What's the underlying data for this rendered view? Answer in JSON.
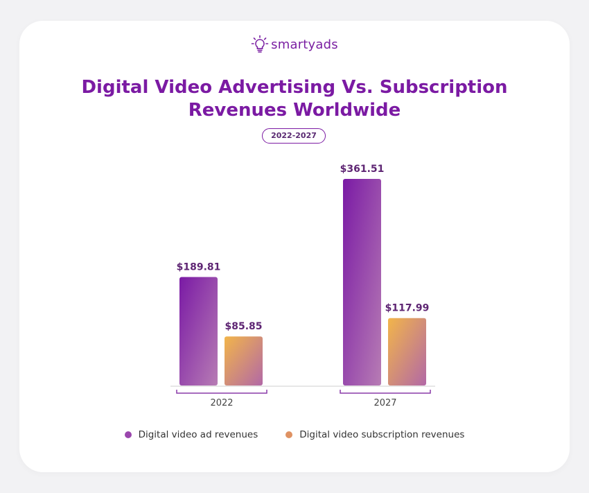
{
  "brand": {
    "name": "smartyads",
    "icon": "lightbulb-icon",
    "color": "#7a1fa2"
  },
  "title_line1": "Digital Video Advertising Vs. Subscription",
  "title_line2": "Revenues Worldwide",
  "period": "2022-2027",
  "chart_data": {
    "type": "bar",
    "title": "Digital Video Advertising Vs. Subscription Revenues Worldwide",
    "subtitle": "2022-2027",
    "categories": [
      "2022",
      "2027"
    ],
    "series": [
      {
        "name": "Digital video ad revenues",
        "values": [
          189.81,
          361.51
        ],
        "labels": [
          "$189.81",
          "$361.51"
        ],
        "gradient": [
          "#7a1aa5",
          "#b77cb4"
        ]
      },
      {
        "name": "Digital video subscription revenues",
        "values": [
          85.85,
          117.99
        ],
        "labels": [
          "$85.85",
          "$117.99"
        ],
        "gradient": [
          "#f2b54a",
          "#b268a6"
        ]
      }
    ],
    "xlabel": "",
    "ylabel": "",
    "ylim": [
      0,
      361.51
    ],
    "grid": false,
    "legend": "bottom"
  },
  "legend_colors": [
    "#9a46ad",
    "#df9263"
  ]
}
